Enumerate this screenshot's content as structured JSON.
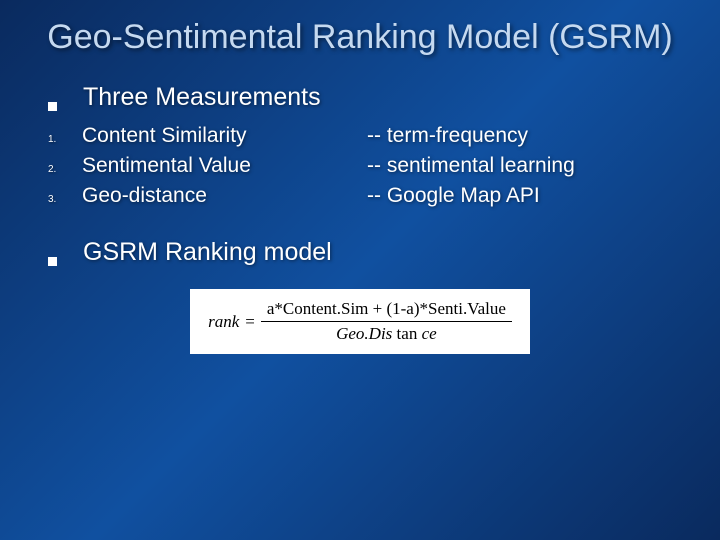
{
  "slide": {
    "title": "Geo-Sentimental Ranking Model (GSRM)",
    "heading1": "Three Measurements",
    "items": [
      {
        "marker": "1.",
        "left": "Content Similarity",
        "right": " -- term-frequency"
      },
      {
        "marker": "2.",
        "left": "Sentimental Value",
        "right": "  -- sentimental learning"
      },
      {
        "marker": "3.",
        "left": "Geo-distance",
        "right": " -- Google Map API"
      }
    ],
    "heading2": "GSRM Ranking model",
    "formula": {
      "lhs": "rank",
      "numerator": "a*Content.Sim + (1-a)*Senti.Value",
      "denominator_prefix": "Geo.Dis",
      "denominator_func": "tan",
      "denominator_suffix": "ce"
    },
    "colors": {
      "background_start": "#0a2a5e",
      "background_mid": "#1050a0",
      "title_color": "#c5d9f0",
      "text_color": "#ffffff",
      "formula_bg": "#ffffff",
      "formula_text": "#000000"
    },
    "typography": {
      "title_fontsize": 34,
      "heading_fontsize": 25,
      "item_fontsize": 21,
      "marker_fontsize": 10,
      "formula_fontsize": 17
    }
  }
}
